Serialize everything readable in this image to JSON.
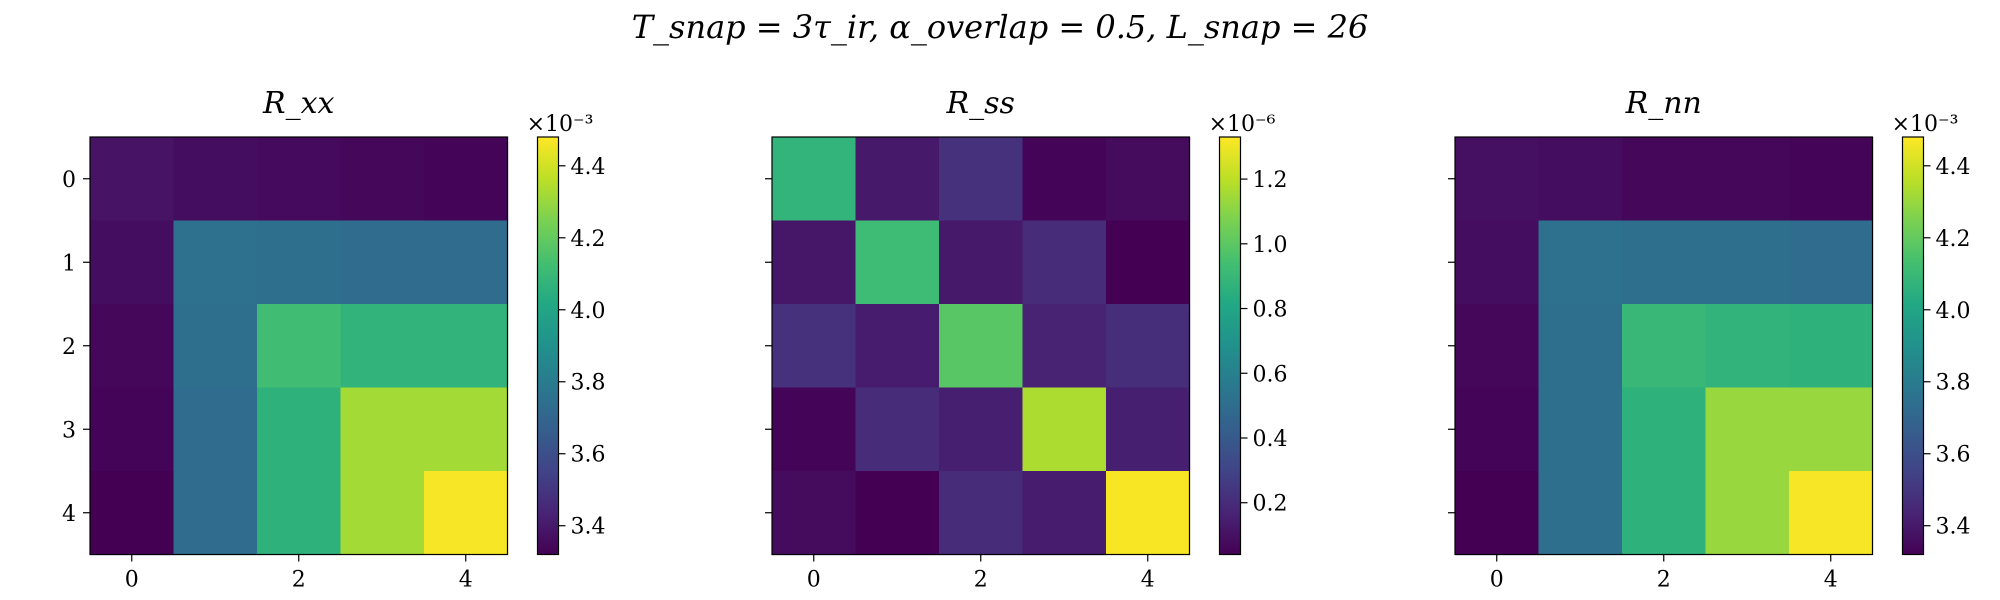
{
  "figure": {
    "suptitle": "T_snap = 3τ_ir,   α_overlap = 0.5,   L_snap = 26"
  },
  "colormap": "viridis",
  "chart_data": [
    {
      "type": "heatmap",
      "title": "R_xx",
      "x_ticks": [
        "0",
        "2",
        "4"
      ],
      "y_ticks": [
        "0",
        "1",
        "2",
        "3",
        "4"
      ],
      "show_y_ticklabels": true,
      "vmin": 3.32,
      "vmax": 4.48,
      "colorbar": {
        "ticks": [
          "3.4",
          "3.6",
          "3.8",
          "4.0",
          "4.2",
          "4.4"
        ],
        "tick_values": [
          3.4,
          3.6,
          3.8,
          4.0,
          4.2,
          4.4
        ],
        "offset_label": "×10⁻³"
      },
      "matrix": [
        [
          3.38,
          3.36,
          3.35,
          3.34,
          3.33
        ],
        [
          3.36,
          3.75,
          3.74,
          3.73,
          3.73
        ],
        [
          3.34,
          3.74,
          4.12,
          4.07,
          4.07
        ],
        [
          3.33,
          3.73,
          4.06,
          4.32,
          4.32
        ],
        [
          3.32,
          3.73,
          4.06,
          4.32,
          4.47
        ]
      ]
    },
    {
      "type": "heatmap",
      "title": "R_ss",
      "x_ticks": [
        "0",
        "2",
        "4"
      ],
      "y_ticks": [
        "0",
        "1",
        "2",
        "3",
        "4"
      ],
      "show_y_ticklabels": false,
      "vmin": 0.04,
      "vmax": 1.33,
      "colorbar": {
        "ticks": [
          "0.2",
          "0.4",
          "0.6",
          "0.8",
          "1.0",
          "1.2"
        ],
        "tick_values": [
          0.2,
          0.4,
          0.6,
          0.8,
          1.0,
          1.2
        ],
        "offset_label": "×10⁻⁶"
      },
      "matrix": [
        [
          0.88,
          0.13,
          0.22,
          0.05,
          0.08
        ],
        [
          0.12,
          0.92,
          0.13,
          0.2,
          0.04
        ],
        [
          0.22,
          0.14,
          0.99,
          0.16,
          0.21
        ],
        [
          0.05,
          0.2,
          0.15,
          1.17,
          0.15
        ],
        [
          0.08,
          0.04,
          0.2,
          0.14,
          1.32
        ]
      ]
    },
    {
      "type": "heatmap",
      "title": "R_nn",
      "x_ticks": [
        "0",
        "2",
        "4"
      ],
      "y_ticks": [
        "0",
        "1",
        "2",
        "3",
        "4"
      ],
      "show_y_ticklabels": false,
      "vmin": 3.32,
      "vmax": 4.48,
      "colorbar": {
        "ticks": [
          "3.4",
          "3.6",
          "3.8",
          "4.0",
          "4.2",
          "4.4"
        ],
        "tick_values": [
          3.4,
          3.6,
          3.8,
          4.0,
          4.2,
          4.4
        ],
        "offset_label": "×10⁻³"
      },
      "matrix": [
        [
          3.37,
          3.36,
          3.34,
          3.34,
          3.33
        ],
        [
          3.36,
          3.75,
          3.74,
          3.74,
          3.73
        ],
        [
          3.34,
          3.74,
          4.09,
          4.07,
          4.06
        ],
        [
          3.33,
          3.74,
          4.06,
          4.3,
          4.3
        ],
        [
          3.32,
          3.74,
          4.06,
          4.3,
          4.47
        ]
      ]
    }
  ]
}
